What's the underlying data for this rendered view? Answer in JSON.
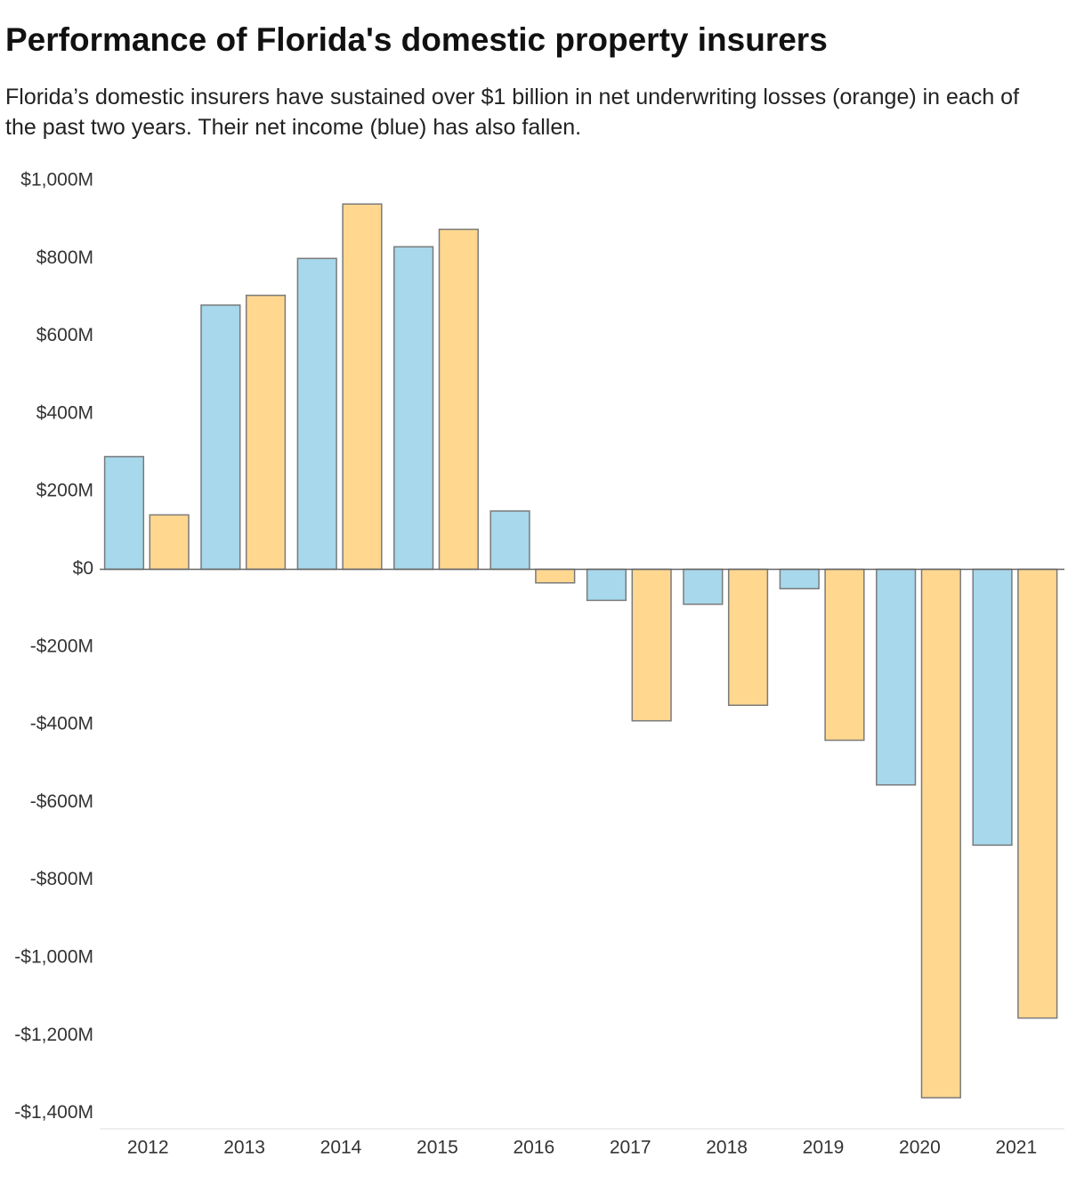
{
  "chart_data": {
    "type": "bar",
    "title": "Performance of Florida's domestic property insurers",
    "subtitle": "Florida’s domestic insurers have sustained over $1 billion in net underwriting losses (orange) in each of the past two years. Their net income (blue) has also fallen.",
    "categories": [
      "2012",
      "2013",
      "2014",
      "2015",
      "2016",
      "2017",
      "2018",
      "2019",
      "2020",
      "2021"
    ],
    "series": [
      {
        "color": "#a7d8ec",
        "values": [
          290,
          680,
          800,
          830,
          150,
          -80,
          -90,
          -50,
          -555,
          -710
        ]
      },
      {
        "color": "#ffd78f",
        "values": [
          140,
          705,
          940,
          875,
          -35,
          -390,
          -350,
          -440,
          -1360,
          -1155
        ]
      }
    ],
    "ylim": [
      -1440,
      1000
    ],
    "yticks": [
      {
        "value": 1000,
        "label": "$1,000M"
      },
      {
        "value": 800,
        "label": "$800M"
      },
      {
        "value": 600,
        "label": "$600M"
      },
      {
        "value": 400,
        "label": "$400M"
      },
      {
        "value": 200,
        "label": "$200M"
      },
      {
        "value": 0,
        "label": "$0"
      },
      {
        "value": -200,
        "label": "-$200M"
      },
      {
        "value": -400,
        "label": "-$400M"
      },
      {
        "value": -600,
        "label": "-$600M"
      },
      {
        "value": -800,
        "label": "-$800M"
      },
      {
        "value": -1000,
        "label": "-$1,000M"
      },
      {
        "value": -1200,
        "label": "-$1,200M"
      },
      {
        "value": -1400,
        "label": "-$1,400M"
      }
    ],
    "grid": false
  }
}
